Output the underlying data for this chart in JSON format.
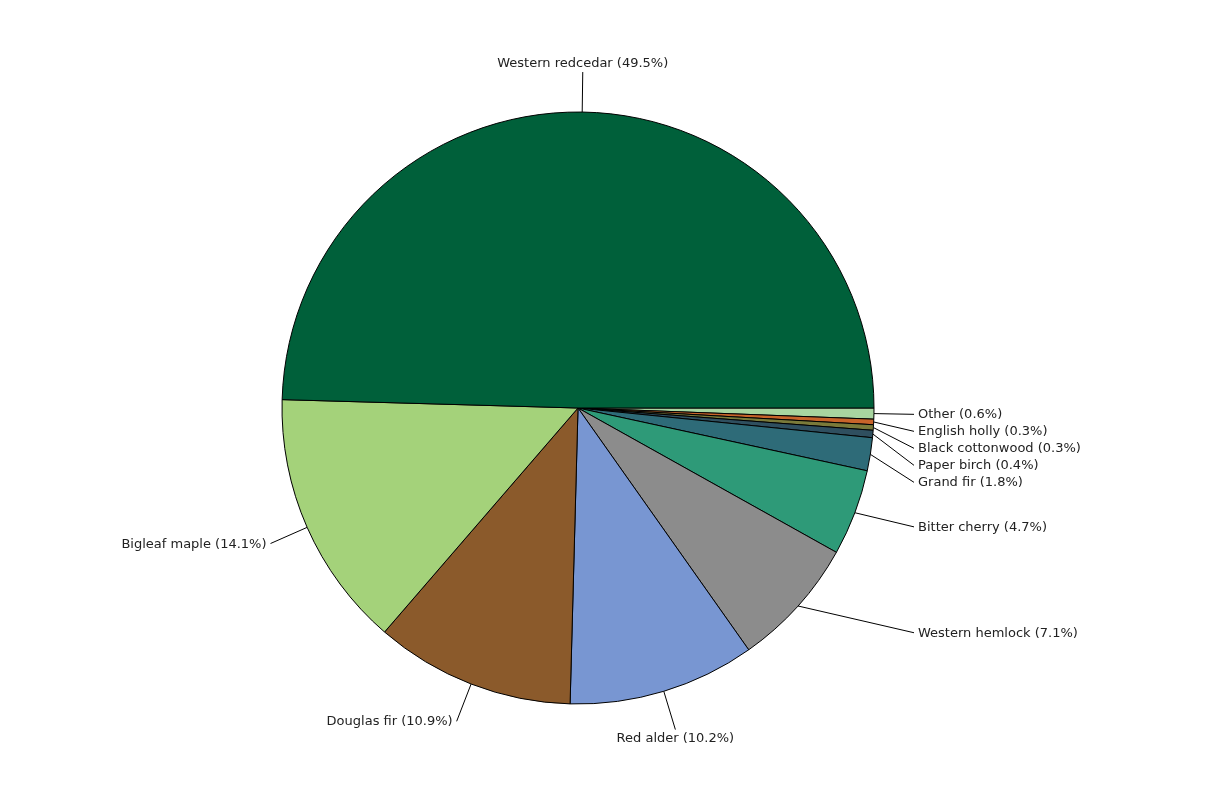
{
  "chart_data": {
    "type": "pie",
    "categories": [
      "Other",
      "English holly",
      "Black cottonwood",
      "Paper birch",
      "Grand fir",
      "Bitter cherry",
      "Western hemlock",
      "Red alder",
      "Douglas fir",
      "Bigleaf maple",
      "Western redcedar"
    ],
    "values": [
      0.6,
      0.3,
      0.3,
      0.4,
      1.8,
      4.7,
      7.1,
      10.2,
      10.9,
      14.1,
      49.5
    ],
    "value_labels": [
      "(0.6%)",
      "(0.3%)",
      "(0.3%)",
      "(0.4%)",
      "(1.8%)",
      "(4.7%)",
      "(7.1%)",
      "(10.2%)",
      "(10.9%)",
      "(14.1%)",
      "(49.5%)"
    ],
    "colors": [
      "#a8d5a0",
      "#c8642a",
      "#7a7a3a",
      "#2f4f5f",
      "#2e6b78",
      "#2e9a78",
      "#8c8c8c",
      "#7896d2",
      "#8b5a2b",
      "#a4d27a",
      "#00603a"
    ]
  }
}
